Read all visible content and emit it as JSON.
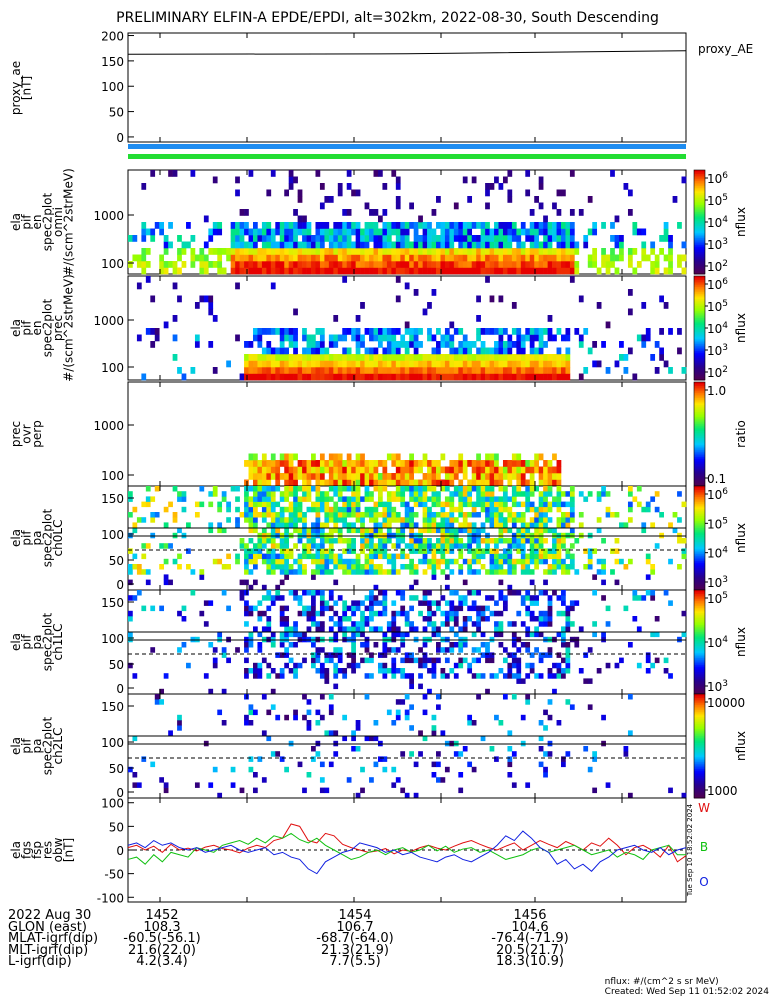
{
  "title": "PRELIMINARY ELFIN-A EPDE/EPDI, alt=302km, 2022-08-30, South Descending",
  "stamp": "Tue Sep 10 18:52:02 2024",
  "chart_data": [
    {
      "type": "line",
      "name": "proxy_ae",
      "ylabel_lines": [
        "proxy_ae",
        "[nT]"
      ],
      "legend": "proxy_AE",
      "yticks": [
        "200",
        "150",
        "100",
        "50",
        "0"
      ],
      "ylim": [
        -10,
        205
      ],
      "x": [
        0,
        0.5,
        1.0
      ],
      "values": [
        163,
        164,
        170
      ]
    },
    {
      "type": "bar",
      "name": "orbit-bars",
      "colors": [
        "#1e8cf0",
        "#22dd33"
      ]
    },
    {
      "type": "heatmap",
      "name": "elx_pef_en_spec2plot_omni",
      "ylabel_lines": [
        "ela",
        "pif",
        "en",
        "spec2plot",
        "omni",
        "#/(scm^2strMeV)"
      ],
      "yticks": [
        "1000",
        "100"
      ],
      "colorbar": {
        "label": "nflux",
        "ticks": [
          "10^6",
          "10^5",
          "10^4",
          "10^3",
          "10^2"
        ]
      }
    },
    {
      "type": "heatmap",
      "name": "elx_pef_en_spec2plot_prec",
      "ylabel_lines": [
        "ela",
        "pif",
        "en",
        "spec2plot",
        "prec",
        "#/(scm^2strMeV)"
      ],
      "yticks": [
        "1000",
        "100"
      ],
      "colorbar": {
        "label": "nflux",
        "ticks": [
          "10^6",
          "10^5",
          "10^4",
          "10^3",
          "10^2"
        ]
      }
    },
    {
      "type": "heatmap",
      "name": "prec_ovr_perp",
      "ylabel_lines": [
        "prec",
        "ovr",
        "perp"
      ],
      "yticks": [
        "1000",
        "100"
      ],
      "colorbar": {
        "label": "ratio",
        "ticks": [
          "1.0",
          "0.1"
        ]
      }
    },
    {
      "type": "heatmap",
      "name": "pa_spec2plot_ch0LC",
      "ylabel_lines": [
        "ela",
        "pif",
        "pa",
        "spec2plot",
        "ch0LC"
      ],
      "yticks": [
        "150",
        "100",
        "50",
        "0"
      ],
      "colorbar": {
        "label": "nflux",
        "ticks": [
          "10^6",
          "10^5",
          "10^4",
          "10^3"
        ]
      }
    },
    {
      "type": "heatmap",
      "name": "pa_spec2plot_ch1LC",
      "ylabel_lines": [
        "ela",
        "pif",
        "pa",
        "spec2plot",
        "ch1LC"
      ],
      "yticks": [
        "150",
        "100",
        "50",
        "0"
      ],
      "colorbar": {
        "label": "nflux",
        "ticks": [
          "10^5",
          "10^4",
          "10^3"
        ]
      }
    },
    {
      "type": "heatmap",
      "name": "pa_spec2plot_ch2LC",
      "ylabel_lines": [
        "ela",
        "pif",
        "pa",
        "spec2plot",
        "ch2LC"
      ],
      "yticks": [
        "150",
        "100",
        "50",
        "0"
      ],
      "colorbar": {
        "label": "nflux",
        "ticks": [
          "10000",
          "1000"
        ]
      }
    },
    {
      "type": "line",
      "name": "fgs_res_obw",
      "ylabel_lines": [
        "ela",
        "fgs",
        "fsp",
        "res",
        "obw",
        "[nT]"
      ],
      "yticks": [
        "100",
        "50",
        "0",
        "-50",
        "-100"
      ],
      "ylim": [
        -110,
        110
      ],
      "series": [
        {
          "name": "W",
          "color": "#e01010",
          "values": [
            5,
            10,
            0,
            8,
            -5,
            12,
            0,
            4,
            -2,
            6,
            10,
            3,
            0,
            -6,
            4,
            10,
            5,
            20,
            25,
            55,
            50,
            20,
            15,
            35,
            30,
            12,
            5,
            0,
            -5,
            -2,
            3,
            -8,
            0,
            -3,
            5,
            10,
            4,
            0,
            8,
            15,
            20,
            12,
            5,
            0,
            8,
            15,
            0,
            10,
            20,
            12,
            5,
            18,
            10,
            0,
            15,
            8,
            25,
            10,
            -10,
            5,
            10,
            0,
            -15,
            10,
            -25,
            -12
          ]
        },
        {
          "name": "B",
          "color": "#10c010",
          "values": [
            -20,
            -15,
            -30,
            -10,
            -25,
            -5,
            -10,
            -15,
            5,
            0,
            -5,
            10,
            15,
            20,
            12,
            25,
            15,
            30,
            25,
            35,
            22,
            15,
            25,
            10,
            0,
            -10,
            -20,
            -15,
            -5,
            0,
            -10,
            0,
            5,
            -5,
            0,
            10,
            -2,
            8,
            -5,
            2,
            5,
            -5,
            0,
            -10,
            -20,
            -15,
            -10,
            0,
            5,
            -5,
            0,
            5,
            10,
            0,
            -10,
            -5,
            0,
            -15,
            -5,
            -10,
            -20,
            0,
            5,
            10,
            -10,
            -10
          ]
        },
        {
          "name": "O",
          "color": "#1020e0",
          "values": [
            10,
            15,
            5,
            20,
            10,
            15,
            5,
            0,
            5,
            -5,
            0,
            5,
            10,
            0,
            -5,
            0,
            5,
            -10,
            -5,
            -15,
            -20,
            -40,
            -50,
            -25,
            -15,
            -5,
            0,
            15,
            10,
            5,
            -5,
            0,
            -10,
            -5,
            -15,
            -20,
            -25,
            -15,
            -10,
            -20,
            -25,
            -15,
            -5,
            10,
            30,
            20,
            40,
            25,
            5,
            -5,
            -30,
            -20,
            -40,
            -30,
            -45,
            -25,
            -15,
            0,
            5,
            10,
            0,
            -5,
            5,
            -10,
            0,
            5
          ]
        }
      ]
    }
  ],
  "footer": {
    "labels": [
      "2022 Aug 30",
      "GLON (east)",
      "MLAT-igrf(dip)",
      "MLT-igrf(dip)",
      "L-igrf(dip)"
    ],
    "columns": [
      {
        "time": "1452",
        "vals": [
          "108.3",
          "-60.5(-56.1)",
          "21.6(22.0)",
          "4.2(3.4)"
        ]
      },
      {
        "time": "1454",
        "vals": [
          "106.7",
          "-68.7(-64.0)",
          "21.3(21.9)",
          "7.7(5.5)"
        ]
      },
      {
        "time": "1456",
        "vals": [
          "104.6",
          "-76.4(-71.9)",
          "20.5(21.7)",
          "18.3(10.9)"
        ]
      }
    ],
    "note1": "nflux: #/(cm^2 s sr MeV)",
    "note2": "Created: Wed Sep 11 01:52:02 2024"
  }
}
